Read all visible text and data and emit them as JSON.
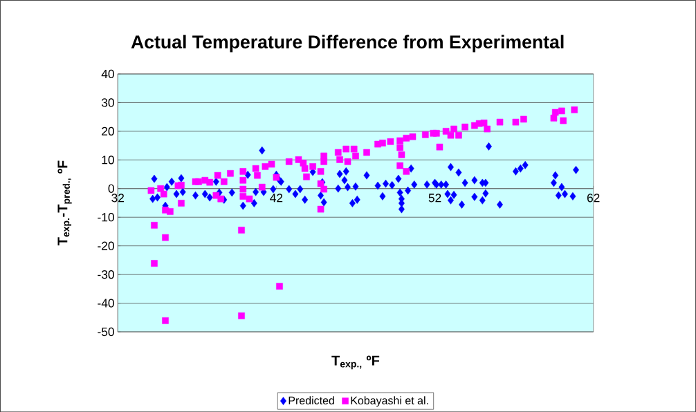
{
  "chart_data": {
    "type": "scatter",
    "title": "Actual Temperature Difference from Experimental",
    "xlabel": "T$_{exp.,}$ ºF",
    "ylabel": "T$_{exp.}$-T$_{pred.,}$ ºF",
    "xlim": [
      32,
      62
    ],
    "xticks": [
      32,
      42,
      52,
      62
    ],
    "ylim": [
      -50,
      40
    ],
    "yticks": [
      -50,
      -40,
      -30,
      -20,
      -10,
      0,
      10,
      20,
      30,
      40
    ],
    "grid": "y",
    "legend": "bottom",
    "series": [
      {
        "name": "Predicted",
        "color": "#0000ff",
        "marker": "diamond",
        "x": [
          34.3,
          34.2,
          34.5,
          35.1,
          35.4,
          35.7,
          36.0,
          36.1,
          35.0,
          36.9,
          37.5,
          37.8,
          38.2,
          38.4,
          38.7,
          39.2,
          39.9,
          40.2,
          40.6,
          40.7,
          41.1,
          41.2,
          41.8,
          42.0,
          42.2,
          42.3,
          42.8,
          43.2,
          43.5,
          43.8,
          44.3,
          44.9,
          44.8,
          45.0,
          45.9,
          46.0,
          46.4,
          46.3,
          46.5,
          47.0,
          46.8,
          47.1,
          47.7,
          48.4,
          48.7,
          48.9,
          49.3,
          49.7,
          49.8,
          49.9,
          49.9,
          49.9,
          50.5,
          50.3,
          50.7,
          51.5,
          52.0,
          52.1,
          52.4,
          52.7,
          52.8,
          53.0,
          53.0,
          53.2,
          53.5,
          53.7,
          53.9,
          54.5,
          54.5,
          55.0,
          55.0,
          55.2,
          55.2,
          55.4,
          56.1,
          57.1,
          57.4,
          57.7,
          59.5,
          59.6,
          59.8,
          60.0,
          60.2,
          60.7,
          60.9
        ],
        "values": [
          3.4,
          -3.6,
          -3.1,
          0.5,
          2.4,
          -1.9,
          3.6,
          -1.2,
          -6.0,
          -2.4,
          -1.9,
          -3.1,
          2.4,
          -1.4,
          -3.9,
          -1.4,
          -6.0,
          4.8,
          -5.1,
          -1.2,
          13.3,
          -1.2,
          -0.2,
          4.8,
          2.9,
          2.4,
          -0.2,
          -1.9,
          -0.2,
          -3.9,
          5.8,
          2.2,
          -2.4,
          -4.8,
          0.0,
          5.1,
          6.0,
          2.9,
          0.5,
          0.7,
          -5.1,
          -3.9,
          4.6,
          1.0,
          -2.7,
          1.7,
          1.2,
          3.4,
          -1.4,
          -3.6,
          -5.1,
          -7.2,
          7.0,
          -0.7,
          1.4,
          1.4,
          2.0,
          1.4,
          1.4,
          1.4,
          -1.9,
          7.5,
          -4.1,
          -2.2,
          5.6,
          -5.6,
          2.0,
          2.9,
          -2.9,
          2.0,
          -4.1,
          -1.7,
          2.0,
          14.7,
          -5.6,
          6.0,
          7.0,
          8.2,
          2.0,
          4.6,
          -2.4,
          0.5,
          -1.9,
          -2.7,
          6.5
        ]
      },
      {
        "name": "Kobayashi et al.",
        "color": "#ff00ff",
        "marker": "square",
        "x": [
          34.1,
          34.3,
          34.3,
          34.7,
          34.9,
          35.0,
          35.0,
          35.0,
          35.3,
          35.8,
          36.0,
          36.0,
          36.9,
          37.1,
          37.5,
          37.8,
          38.3,
          38.7,
          38.2,
          38.5,
          39.1,
          39.9,
          39.9,
          39.9,
          39.9,
          39.8,
          39.8,
          40.3,
          40.7,
          40.8,
          41.1,
          41.3,
          41.7,
          42.0,
          42.2,
          42.8,
          43.4,
          43.7,
          43.8,
          43.9,
          44.3,
          44.8,
          45.0,
          45.0,
          44.8,
          45.0,
          44.8,
          45.9,
          46.0,
          46.4,
          46.5,
          46.9,
          47.0,
          47.7,
          48.4,
          48.7,
          49.2,
          49.8,
          49.8,
          49.9,
          49.8,
          50.2,
          50.2,
          50.6,
          51.4,
          51.9,
          52.3,
          52.1,
          52.7,
          53.0,
          53.2,
          53.5,
          53.9,
          54.5,
          54.8,
          55.1,
          55.3,
          56.1,
          57.1,
          57.6,
          59.5,
          59.6,
          60.0,
          60.1,
          60.8
        ],
        "values": [
          -0.7,
          -12.8,
          -26.1,
          0.0,
          -1.9,
          -7.5,
          -17.1,
          -46.1,
          -8.0,
          1.0,
          -5.1,
          1.2,
          2.4,
          2.4,
          2.9,
          2.2,
          4.6,
          2.4,
          -2.4,
          -3.6,
          5.3,
          6.0,
          2.9,
          -0.2,
          -2.7,
          -14.5,
          -44.4,
          -3.6,
          7.0,
          4.6,
          0.5,
          7.7,
          8.5,
          3.9,
          -34.1,
          9.4,
          10.1,
          8.9,
          7.0,
          4.1,
          7.7,
          6.0,
          11.4,
          9.4,
          1.7,
          -0.2,
          -7.2,
          12.6,
          10.1,
          13.8,
          9.4,
          13.8,
          11.4,
          12.6,
          15.5,
          15.9,
          16.4,
          16.7,
          14.3,
          11.8,
          8.0,
          6.0,
          17.6,
          18.1,
          18.8,
          19.3,
          14.5,
          19.3,
          20.0,
          18.6,
          20.8,
          18.6,
          21.5,
          22.0,
          22.7,
          22.9,
          20.8,
          23.2,
          23.2,
          24.2,
          24.6,
          26.6,
          27.1,
          23.7,
          27.5
        ]
      }
    ]
  }
}
